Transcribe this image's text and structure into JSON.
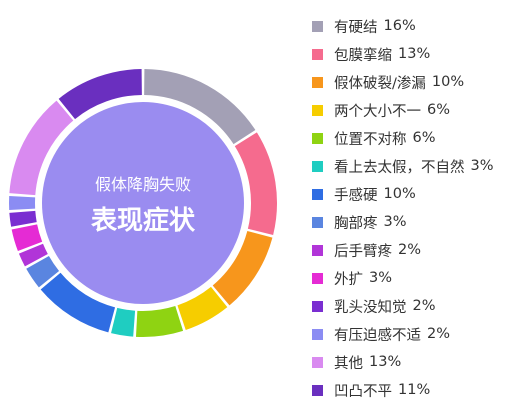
{
  "chart_data": {
    "type": "pie",
    "title": "假体降胸失败",
    "subtitle": "表现症状",
    "categories": [
      "有硬结",
      "包膜挛缩",
      "假体破裂/渗漏",
      "两个大小不一",
      "位置不对称",
      "看上去太假，不自然",
      "手感硬",
      "胸部疼",
      "后手臂疼",
      "外扩",
      "乳头没知觉",
      "有压迫感不适",
      "其他",
      "凹凸不平"
    ],
    "values": [
      16,
      13,
      10,
      6,
      6,
      3,
      10,
      3,
      2,
      3,
      2,
      2,
      13,
      11
    ],
    "value_labels": [
      "16%",
      "13%",
      "10%",
      "6%",
      "6%",
      "3%",
      "10%",
      "3%",
      "2%",
      "3%",
      "2%",
      "2%",
      "13%",
      "11%"
    ],
    "colors": [
      "#a3a0b5",
      "#f56b8e",
      "#f7961c",
      "#f6cd00",
      "#8fd312",
      "#1fcdc1",
      "#2f6de3",
      "#5a85e0",
      "#b135d8",
      "#e52bd4",
      "#7a2ed1",
      "#8b8cf3",
      "#d98af0",
      "#6a2fbf"
    ],
    "center_color": "#9a8cf0",
    "legend": "right"
  }
}
